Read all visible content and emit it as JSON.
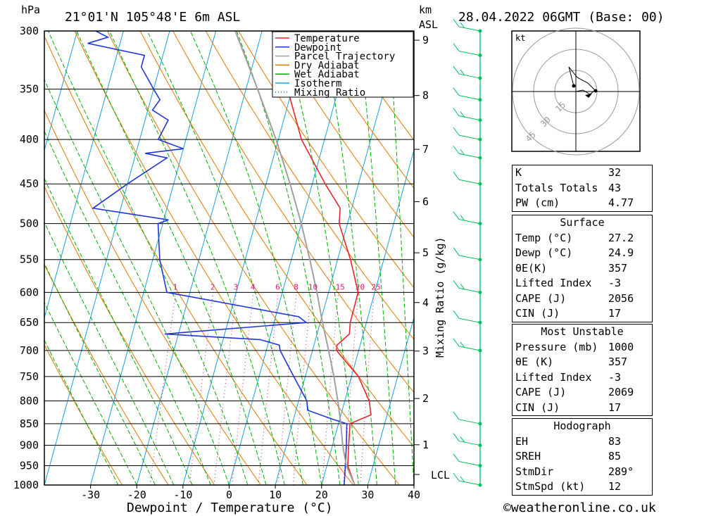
{
  "header": {
    "units_left": "hPa",
    "location": "21°01'N  105°48'E  6m  ASL",
    "units_km": "km",
    "units_asl": "ASL",
    "datetime": "28.04.2022  06GMT  (Base: 00)"
  },
  "legend": [
    {
      "label": "Temperature",
      "color": "#e8262b",
      "style": "solid"
    },
    {
      "label": "Dewpoint",
      "color": "#2036d8",
      "style": "solid"
    },
    {
      "label": "Parcel Trajectory",
      "color": "#a0a0a0",
      "style": "solid"
    },
    {
      "label": "Dry Adiabat",
      "color": "#e07a00",
      "style": "solid"
    },
    {
      "label": "Wet Adiabat",
      "color": "#00b000",
      "style": "solid"
    },
    {
      "label": "Isotherm",
      "color": "#1aa0e0",
      "style": "solid"
    },
    {
      "label": "Mixing Ratio",
      "color": "#d0207a",
      "style": "dotted"
    }
  ],
  "chart_data": {
    "type": "line",
    "title": "21°01'N  105°48'E  6m  ASL",
    "xlabel": "Dewpoint / Temperature (°C)",
    "ylabel": "hPa",
    "xlim": [
      -40,
      40
    ],
    "ylim": [
      1000,
      300
    ],
    "x_ticks": [
      "-30",
      "-20",
      "-10",
      "0",
      "10",
      "20",
      "30",
      "40"
    ],
    "pressure_levels": [
      "300",
      "350",
      "400",
      "450",
      "500",
      "550",
      "600",
      "650",
      "700",
      "750",
      "800",
      "850",
      "900",
      "950",
      "1000"
    ],
    "km_ticks": [
      "1",
      "2",
      "3",
      "4",
      "5",
      "6",
      "7",
      "8",
      "9"
    ],
    "lcl_label": "LCL",
    "mixing_ratio_axis_label": "Mixing Ratio (g/kg)",
    "mixing_ratio_labels": [
      "1",
      "2",
      "3",
      "4",
      "6",
      "8",
      "10",
      "15",
      "20",
      "25"
    ],
    "series": [
      {
        "name": "Temperature",
        "points": [
          [
            1000,
            27.2
          ],
          [
            950,
            24.5
          ],
          [
            900,
            23.5
          ],
          [
            850,
            22.5
          ],
          [
            830,
            26.5
          ],
          [
            800,
            25.3
          ],
          [
            750,
            21.5
          ],
          [
            700,
            15.2
          ],
          [
            690,
            15.0
          ],
          [
            670,
            17.0
          ],
          [
            650,
            16.5
          ],
          [
            600,
            16.4
          ],
          [
            550,
            12.8
          ],
          [
            500,
            8.2
          ],
          [
            480,
            7.5
          ],
          [
            450,
            2.8
          ],
          [
            400,
            -5.0
          ],
          [
            370,
            -8.5
          ],
          [
            350,
            -11.0
          ],
          [
            330,
            -13.2
          ],
          [
            310,
            -15.5
          ],
          [
            300,
            -16.8
          ]
        ]
      },
      {
        "name": "Dewpoint",
        "points": [
          [
            1000,
            24.9
          ],
          [
            950,
            24.0
          ],
          [
            900,
            23.0
          ],
          [
            850,
            21.8
          ],
          [
            840,
            18.5
          ],
          [
            820,
            12.5
          ],
          [
            800,
            11.8
          ],
          [
            750,
            7.5
          ],
          [
            700,
            3.0
          ],
          [
            690,
            2.5
          ],
          [
            680,
            -2.0
          ],
          [
            670,
            -23.0
          ],
          [
            650,
            7.0
          ],
          [
            640,
            5.0
          ],
          [
            600,
            -25.0
          ],
          [
            550,
            -28.5
          ],
          [
            500,
            -31.0
          ],
          [
            495,
            -29.0
          ],
          [
            480,
            -46.0
          ],
          [
            450,
            -40.0
          ],
          [
            420,
            -33.0
          ],
          [
            415,
            -38.0
          ],
          [
            410,
            -30.0
          ],
          [
            400,
            -36.0
          ],
          [
            380,
            -35.0
          ],
          [
            370,
            -39.0
          ],
          [
            360,
            -38.0
          ],
          [
            350,
            -40.0
          ],
          [
            330,
            -44.0
          ],
          [
            320,
            -44.0
          ],
          [
            310,
            -57.0
          ],
          [
            305,
            -53.0
          ],
          [
            300,
            -56.0
          ]
        ]
      },
      {
        "name": "Parcel Trajectory",
        "points": [
          [
            1000,
            27.2
          ],
          [
            950,
            24.2
          ],
          [
            900,
            22.2
          ],
          [
            850,
            20.5
          ],
          [
            800,
            18.5
          ],
          [
            750,
            16.2
          ],
          [
            700,
            13.5
          ],
          [
            650,
            10.5
          ],
          [
            600,
            7.5
          ],
          [
            550,
            4.0
          ],
          [
            500,
            0.0
          ],
          [
            450,
            -4.8
          ],
          [
            400,
            -10.5
          ],
          [
            350,
            -17.5
          ],
          [
            300,
            -25.8
          ]
        ]
      }
    ],
    "wind_profile_color": "#00c060"
  },
  "hodograph": {
    "unit_label": "kt",
    "ring_labels": [
      "15",
      "30",
      "45"
    ]
  },
  "indices": {
    "rows": [
      {
        "label": "K",
        "value": "32"
      },
      {
        "label": "Totals Totals",
        "value": "43"
      },
      {
        "label": "PW (cm)",
        "value": "4.77"
      }
    ]
  },
  "surface": {
    "title": "Surface",
    "rows": [
      {
        "label": "Temp (°C)",
        "value": "27.2"
      },
      {
        "label": "Dewp (°C)",
        "value": "24.9"
      },
      {
        "label": "θE(K)",
        "value": "357"
      },
      {
        "label": "Lifted Index",
        "value": "-3"
      },
      {
        "label": "CAPE (J)",
        "value": "2056"
      },
      {
        "label": "CIN (J)",
        "value": "17"
      }
    ]
  },
  "most_unstable": {
    "title": "Most Unstable",
    "rows": [
      {
        "label": "Pressure (mb)",
        "value": "1000"
      },
      {
        "label": "θE (K)",
        "value": "357"
      },
      {
        "label": "Lifted Index",
        "value": "-3"
      },
      {
        "label": "CAPE (J)",
        "value": "2069"
      },
      {
        "label": "CIN (J)",
        "value": "17"
      }
    ]
  },
  "hodograph_table": {
    "title": "Hodograph",
    "rows": [
      {
        "label": "EH",
        "value": "83"
      },
      {
        "label": "SREH",
        "value": "85"
      },
      {
        "label": "StmDir",
        "value": "289°"
      },
      {
        "label": "StmSpd (kt)",
        "value": "12"
      }
    ]
  },
  "footer": {
    "copyright": "©weatheronline.co.uk"
  }
}
